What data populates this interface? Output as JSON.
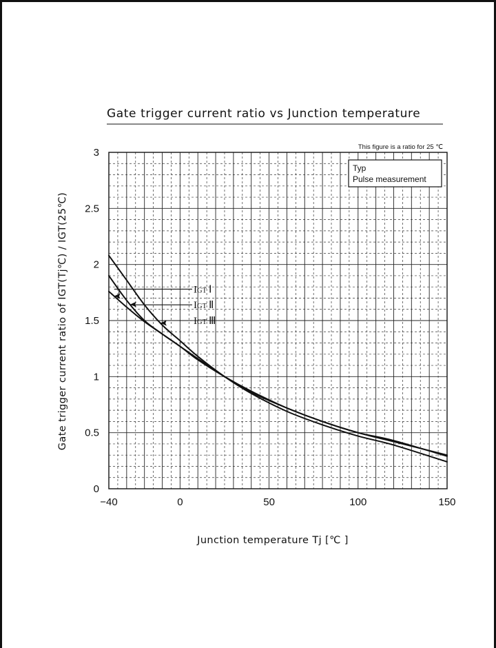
{
  "chart_data": {
    "type": "line",
    "title": "Gate trigger current ratio  vs  Junction  temperature",
    "xlabel": "Junction  temperature    Tj  [℃ ]",
    "ylabel": "Gate  trigger  current  ratio  of  IGT(Tj℃) / IGT(25℃)",
    "xlim": [
      -40,
      150
    ],
    "ylim": [
      0,
      3
    ],
    "x_ticks": [
      "−40",
      "0",
      "50",
      "100",
      "150"
    ],
    "x_tick_values": [
      -40,
      0,
      50,
      100,
      150
    ],
    "y_ticks": [
      "0",
      "0.5",
      "1",
      "1.5",
      "2",
      "2.5",
      "3"
    ],
    "y_tick_values": [
      0,
      0.5,
      1,
      1.5,
      2,
      2.5,
      3
    ],
    "grid": true,
    "note": "This figure is a ratio for 25 ℃",
    "legend": [
      "Typ",
      "Pulse measurement"
    ],
    "legend_position": "top-right",
    "series": [
      {
        "name": "IGT Ⅰ",
        "label_main": "I",
        "label_sub": "GT",
        "label_roman": "Ⅰ",
        "x": [
          -40,
          -30,
          -20,
          -10,
          0,
          10,
          25,
          40,
          60,
          80,
          100,
          120,
          150
        ],
        "y": [
          1.76,
          1.62,
          1.49,
          1.38,
          1.27,
          1.16,
          1.0,
          0.86,
          0.72,
          0.6,
          0.5,
          0.42,
          0.3
        ]
      },
      {
        "name": "IGT Ⅱ",
        "label_main": "I",
        "label_sub": "GT",
        "label_roman": "Ⅱ",
        "x": [
          -40,
          -30,
          -20,
          -10,
          0,
          10,
          25,
          40,
          60,
          80,
          100,
          120,
          150
        ],
        "y": [
          1.9,
          1.68,
          1.5,
          1.38,
          1.27,
          1.15,
          1.0,
          0.87,
          0.72,
          0.6,
          0.5,
          0.43,
          0.29
        ]
      },
      {
        "name": "IGT Ⅲ",
        "label_main": "I",
        "label_sub": "GT",
        "label_roman": "Ⅲ",
        "x": [
          -40,
          -30,
          -20,
          -10,
          0,
          10,
          25,
          40,
          60,
          80,
          100,
          120,
          150
        ],
        "y": [
          2.08,
          1.86,
          1.64,
          1.46,
          1.32,
          1.18,
          1.0,
          0.85,
          0.69,
          0.57,
          0.47,
          0.39,
          0.24
        ]
      }
    ]
  }
}
